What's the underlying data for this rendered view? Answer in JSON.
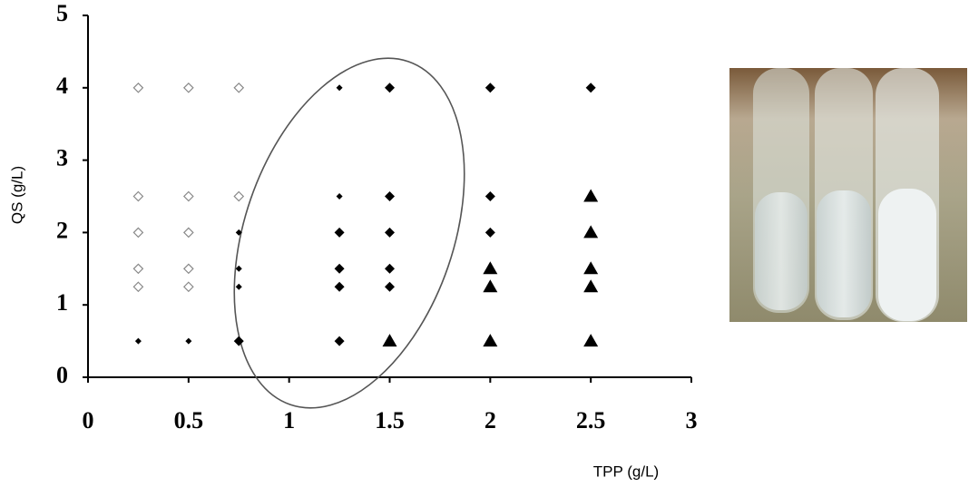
{
  "chart_data": {
    "type": "scatter",
    "x_label": "TPP (g/L)",
    "y_label": "QS (g/L)",
    "xlim": [
      0,
      3
    ],
    "ylim": [
      0,
      5
    ],
    "xticks": [
      0,
      0.5,
      1,
      1.5,
      2,
      2.5,
      3
    ],
    "yticks": [
      0,
      1,
      2,
      3,
      4,
      5
    ],
    "series": [
      {
        "marker": "open-diamond",
        "color": "#888888",
        "x": [
          0.25,
          0.5,
          0.75,
          0.25,
          0.5,
          0.75,
          0.25,
          0.5,
          0.25,
          0.5,
          0.25,
          0.5
        ],
        "values": [
          4,
          4,
          4,
          2.5,
          2.5,
          2.5,
          2,
          2,
          1.5,
          1.5,
          1.25,
          1.25
        ]
      },
      {
        "marker": "small-diamond",
        "color": "#000000",
        "x": [
          1.25,
          0.75,
          0.75,
          0.75,
          0.25,
          0.5,
          1.25
        ],
        "values": [
          4,
          2,
          1.5,
          1.25,
          0.5,
          0.5,
          2.5
        ]
      },
      {
        "marker": "diamond",
        "color": "#000000",
        "x": [
          1.5,
          2,
          2.5,
          1.5,
          2,
          1.25,
          1.5,
          2,
          1.25,
          1.5,
          1.25,
          1.5,
          0.75,
          1.25
        ],
        "values": [
          4,
          4,
          4,
          2.5,
          2.5,
          2,
          2,
          2,
          1.5,
          1.5,
          1.25,
          1.25,
          0.5,
          0.5
        ]
      },
      {
        "marker": "triangle",
        "color": "#000000",
        "x": [
          2.5,
          2.5,
          2,
          2.5,
          2,
          2.5,
          1.5,
          2,
          2.5
        ],
        "values": [
          2.5,
          2,
          1.5,
          1.5,
          1.25,
          1.25,
          0.5,
          0.5,
          0.5
        ]
      }
    ]
  }
}
